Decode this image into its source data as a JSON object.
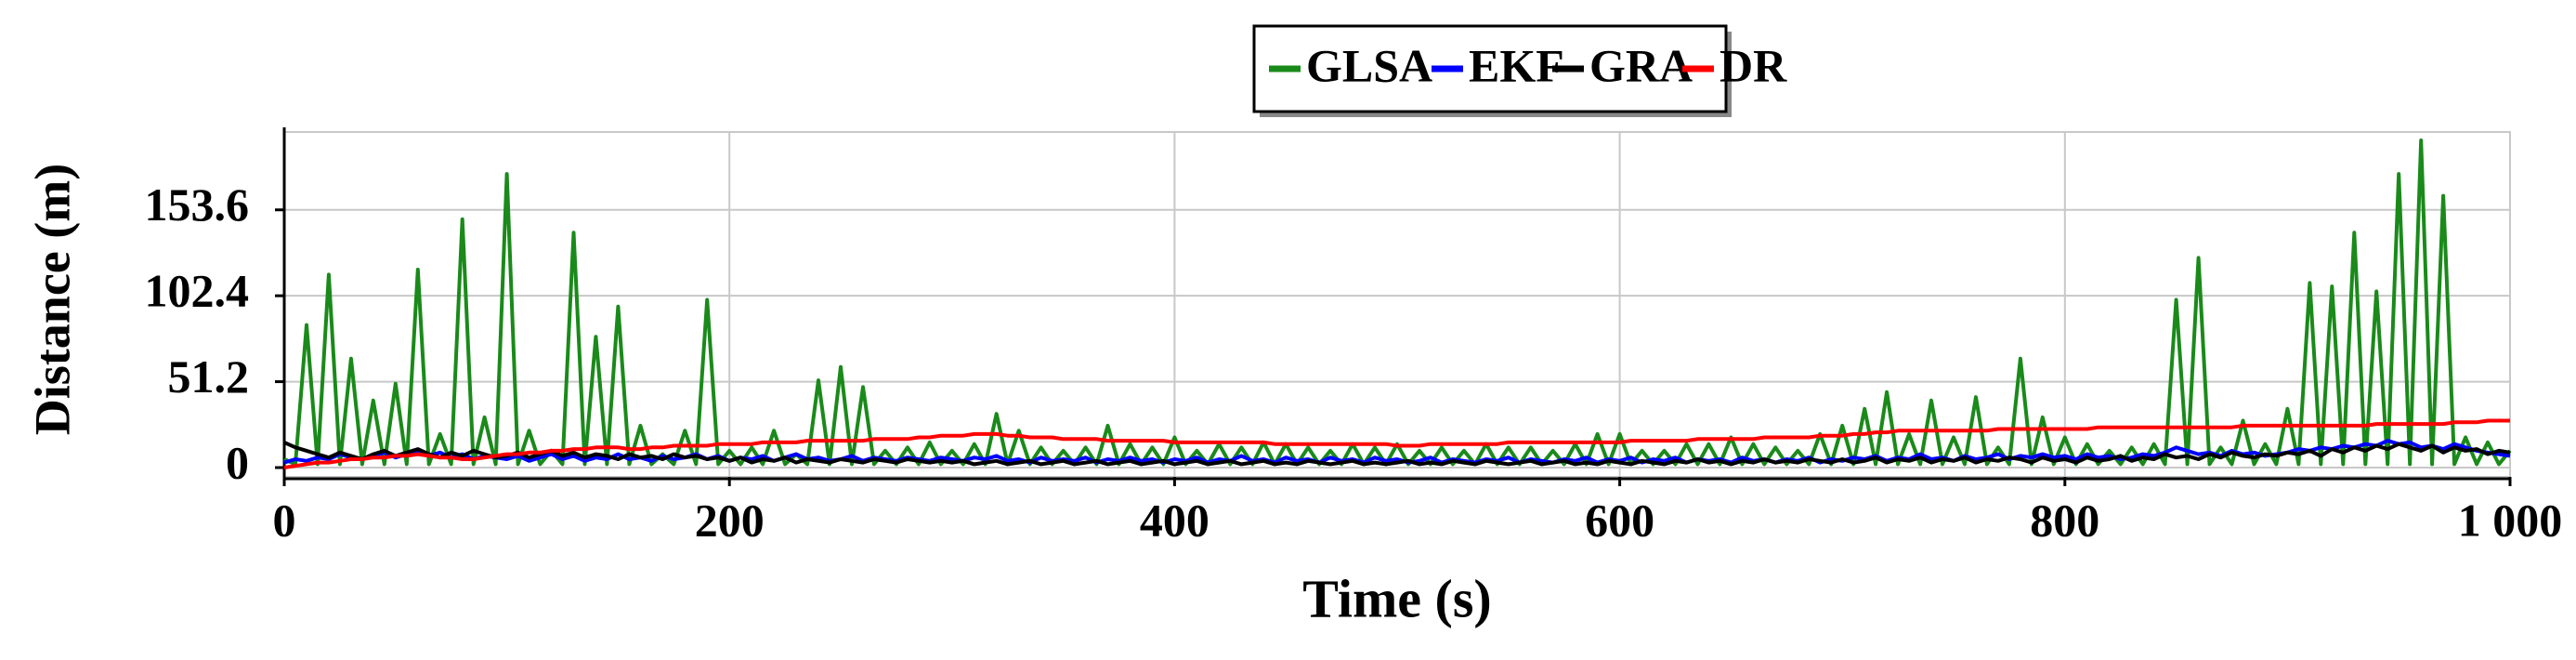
{
  "chart_data": {
    "type": "line",
    "x_label": "Time (s)",
    "y_label": "Distance (m)",
    "xlim": [
      0,
      1000
    ],
    "ylim": [
      0,
      200
    ],
    "xticks": [
      0,
      200,
      400,
      600,
      800,
      {
        "value": 1000,
        "label": "1 000"
      }
    ],
    "yticks": [
      0,
      51.2,
      102.4,
      153.6
    ],
    "grid": true,
    "legend": "top",
    "x": [
      0,
      5,
      10,
      15,
      20,
      25,
      30,
      35,
      40,
      45,
      50,
      55,
      60,
      65,
      70,
      75,
      80,
      85,
      90,
      95,
      100,
      105,
      110,
      115,
      120,
      125,
      130,
      135,
      140,
      145,
      150,
      155,
      160,
      165,
      170,
      175,
      180,
      185,
      190,
      195,
      200,
      205,
      210,
      215,
      220,
      225,
      230,
      235,
      240,
      245,
      250,
      255,
      260,
      265,
      270,
      275,
      280,
      285,
      290,
      295,
      300,
      305,
      310,
      315,
      320,
      325,
      330,
      335,
      340,
      345,
      350,
      355,
      360,
      365,
      370,
      375,
      380,
      385,
      390,
      395,
      400,
      405,
      410,
      415,
      420,
      425,
      430,
      435,
      440,
      445,
      450,
      455,
      460,
      465,
      470,
      475,
      480,
      485,
      490,
      495,
      500,
      505,
      510,
      515,
      520,
      525,
      530,
      535,
      540,
      545,
      550,
      555,
      560,
      565,
      570,
      575,
      580,
      585,
      590,
      595,
      600,
      605,
      610,
      615,
      620,
      625,
      630,
      635,
      640,
      645,
      650,
      655,
      660,
      665,
      670,
      675,
      680,
      685,
      690,
      695,
      700,
      705,
      710,
      715,
      720,
      725,
      730,
      735,
      740,
      745,
      750,
      755,
      760,
      765,
      770,
      775,
      780,
      785,
      790,
      795,
      800,
      805,
      810,
      815,
      820,
      825,
      830,
      835,
      840,
      845,
      850,
      855,
      860,
      865,
      870,
      875,
      880,
      885,
      890,
      895,
      900,
      905,
      910,
      915,
      920,
      925,
      930,
      935,
      940,
      945,
      950,
      955,
      960,
      965,
      970,
      975,
      980,
      985,
      990,
      995,
      1000
    ],
    "series": [
      {
        "name": "GLSA",
        "color": "#1a8a1a",
        "values": [
          5,
          2,
          85,
          2,
          115,
          2,
          65,
          2,
          40,
          2,
          50,
          2,
          118,
          2,
          20,
          2,
          148,
          2,
          30,
          2,
          175,
          2,
          22,
          2,
          10,
          2,
          140,
          2,
          78,
          2,
          96,
          2,
          25,
          2,
          8,
          2,
          22,
          2,
          100,
          2,
          10,
          2,
          12,
          2,
          22,
          2,
          8,
          2,
          52,
          2,
          60,
          2,
          48,
          2,
          10,
          2,
          12,
          2,
          15,
          2,
          10,
          2,
          14,
          2,
          32,
          2,
          22,
          2,
          12,
          2,
          10,
          2,
          12,
          2,
          25,
          2,
          14,
          2,
          12,
          2,
          18,
          2,
          10,
          2,
          14,
          2,
          12,
          2,
          15,
          2,
          14,
          2,
          12,
          2,
          10,
          2,
          14,
          2,
          12,
          2,
          14,
          2,
          10,
          2,
          12,
          2,
          10,
          2,
          14,
          2,
          12,
          2,
          12,
          2,
          10,
          2,
          14,
          2,
          20,
          2,
          20,
          2,
          10,
          2,
          10,
          2,
          14,
          2,
          14,
          2,
          18,
          2,
          14,
          2,
          12,
          2,
          10,
          2,
          20,
          2,
          25,
          2,
          35,
          2,
          45,
          2,
          20,
          2,
          40,
          2,
          18,
          2,
          42,
          2,
          12,
          2,
          65,
          2,
          30,
          2,
          18,
          2,
          14,
          2,
          10,
          2,
          12,
          2,
          14,
          2,
          100,
          2,
          125,
          2,
          12,
          2,
          28,
          2,
          14,
          2,
          35,
          2,
          110,
          2,
          108,
          2,
          140,
          2,
          105,
          2,
          175,
          2,
          195,
          2,
          162,
          2,
          18,
          2,
          15,
          2,
          10
        ]
      },
      {
        "name": "EKF",
        "color": "#0000ff",
        "values": [
          3,
          5,
          4,
          6,
          5,
          8,
          6,
          5,
          7,
          9,
          6,
          8,
          10,
          7,
          9,
          6,
          8,
          5,
          7,
          6,
          5,
          7,
          4,
          6,
          8,
          5,
          7,
          4,
          6,
          5,
          8,
          5,
          6,
          4,
          7,
          5,
          6,
          8,
          5,
          7,
          4,
          6,
          5,
          7,
          4,
          6,
          8,
          5,
          6,
          4,
          5,
          7,
          4,
          6,
          5,
          4,
          6,
          5,
          4,
          6,
          5,
          4,
          6,
          5,
          7,
          4,
          5,
          3,
          6,
          4,
          5,
          4,
          6,
          3,
          5,
          4,
          6,
          4,
          5,
          3,
          5,
          4,
          6,
          3,
          5,
          4,
          7,
          4,
          5,
          3,
          6,
          4,
          5,
          3,
          6,
          4,
          5,
          3,
          6,
          4,
          5,
          3,
          4,
          6,
          3,
          5,
          4,
          3,
          5,
          4,
          6,
          3,
          5,
          4,
          3,
          5,
          4,
          6,
          3,
          5,
          4,
          6,
          3,
          5,
          4,
          6,
          3,
          5,
          4,
          5,
          3,
          6,
          4,
          5,
          3,
          5,
          4,
          6,
          3,
          5,
          4,
          6,
          5,
          7,
          4,
          6,
          5,
          8,
          5,
          6,
          4,
          7,
          5,
          6,
          8,
          5,
          7,
          6,
          8,
          6,
          7,
          5,
          8,
          6,
          7,
          5,
          6,
          8,
          7,
          9,
          12,
          10,
          8,
          9,
          7,
          10,
          8,
          9,
          7,
          8,
          9,
          11,
          10,
          12,
          11,
          13,
          12,
          14,
          13,
          16,
          14,
          15,
          12,
          13,
          11,
          14,
          12,
          10,
          9,
          8,
          7
        ]
      },
      {
        "name": "GRA",
        "color": "#000000",
        "values": [
          15,
          12,
          10,
          8,
          6,
          9,
          7,
          5,
          8,
          10,
          7,
          9,
          11,
          8,
          6,
          9,
          7,
          10,
          8,
          6,
          7,
          9,
          6,
          8,
          10,
          7,
          9,
          6,
          8,
          7,
          5,
          8,
          6,
          7,
          5,
          8,
          6,
          7,
          5,
          6,
          4,
          6,
          3,
          5,
          4,
          6,
          3,
          5,
          4,
          3,
          5,
          4,
          3,
          5,
          4,
          3,
          5,
          4,
          3,
          4,
          3,
          4,
          2,
          3,
          4,
          2,
          3,
          4,
          2,
          3,
          4,
          2,
          3,
          4,
          2,
          3,
          4,
          2,
          3,
          4,
          2,
          3,
          4,
          2,
          3,
          4,
          2,
          3,
          4,
          2,
          3,
          2,
          4,
          3,
          2,
          3,
          4,
          2,
          3,
          2,
          3,
          4,
          2,
          3,
          2,
          4,
          3,
          2,
          4,
          3,
          2,
          3,
          4,
          2,
          3,
          4,
          2,
          3,
          2,
          4,
          3,
          2,
          4,
          3,
          2,
          4,
          3,
          5,
          3,
          4,
          2,
          4,
          3,
          5,
          3,
          4,
          3,
          5,
          4,
          3,
          5,
          3,
          4,
          6,
          3,
          5,
          4,
          6,
          3,
          5,
          4,
          6,
          3,
          5,
          4,
          6,
          5,
          3,
          6,
          4,
          5,
          3,
          6,
          4,
          5,
          7,
          4,
          6,
          5,
          8,
          6,
          7,
          5,
          8,
          6,
          9,
          7,
          6,
          8,
          7,
          9,
          8,
          10,
          7,
          11,
          9,
          12,
          10,
          13,
          11,
          14,
          12,
          10,
          13,
          9,
          12,
          10,
          11,
          8,
          10,
          9
        ]
      },
      {
        "name": "DR",
        "color": "#ff0000",
        "values": [
          0,
          1,
          2,
          3,
          3,
          4,
          5,
          5,
          6,
          6,
          7,
          7,
          8,
          7,
          6,
          6,
          5,
          5,
          6,
          7,
          8,
          8,
          9,
          9,
          10,
          10,
          11,
          11,
          12,
          12,
          12,
          11,
          11,
          12,
          12,
          13,
          13,
          13,
          13,
          14,
          14,
          14,
          14,
          15,
          15,
          15,
          15,
          16,
          16,
          16,
          16,
          16,
          16,
          17,
          17,
          17,
          17,
          18,
          18,
          19,
          19,
          19,
          20,
          20,
          20,
          19,
          19,
          18,
          18,
          18,
          17,
          17,
          17,
          17,
          16,
          16,
          16,
          16,
          16,
          16,
          15,
          15,
          15,
          15,
          15,
          15,
          15,
          15,
          15,
          14,
          14,
          14,
          14,
          14,
          14,
          14,
          14,
          14,
          14,
          14,
          13,
          13,
          13,
          14,
          14,
          14,
          14,
          14,
          14,
          14,
          15,
          15,
          15,
          15,
          15,
          15,
          15,
          15,
          15,
          15,
          15,
          16,
          16,
          16,
          16,
          16,
          16,
          17,
          17,
          17,
          17,
          17,
          17,
          18,
          18,
          18,
          18,
          18,
          19,
          19,
          19,
          20,
          20,
          21,
          21,
          22,
          22,
          22,
          22,
          22,
          22,
          22,
          22,
          22,
          23,
          23,
          23,
          23,
          23,
          23,
          23,
          23,
          23,
          24,
          24,
          24,
          24,
          24,
          24,
          24,
          24,
          24,
          24,
          24,
          24,
          24,
          25,
          25,
          25,
          25,
          25,
          25,
          25,
          25,
          25,
          25,
          25,
          25,
          26,
          26,
          26,
          26,
          26,
          26,
          26,
          27,
          27,
          27,
          28,
          28,
          28
        ]
      }
    ]
  }
}
